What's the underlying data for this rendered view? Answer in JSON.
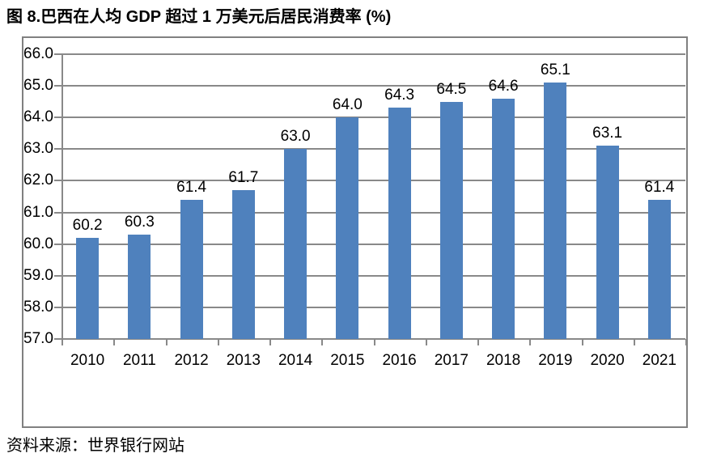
{
  "page": {
    "title": "图 8.巴西在人均 GDP 超过 1 万美元后居民消费率 (%)",
    "source": "资料来源：世界银行网站"
  },
  "colors": {
    "bar": "#4F81BD",
    "gridline": "#898989",
    "frame_border": "#808080",
    "text": "#000000"
  },
  "chart_data": {
    "type": "bar",
    "title": "图 8.巴西在人均 GDP 超过 1 万美元后居民消费率 (%)",
    "categories": [
      "2010",
      "2011",
      "2012",
      "2013",
      "2014",
      "2015",
      "2016",
      "2017",
      "2018",
      "2019",
      "2020",
      "2021"
    ],
    "values": [
      60.2,
      60.3,
      61.4,
      61.7,
      63.0,
      64.0,
      64.3,
      64.5,
      64.6,
      65.1,
      63.1,
      61.4
    ],
    "data_labels": [
      "60.2",
      "60.3",
      "61.4",
      "61.7",
      "63.0",
      "64.0",
      "64.3",
      "64.5",
      "64.6",
      "65.1",
      "63.1",
      "61.4"
    ],
    "xlabel": "",
    "ylabel": "",
    "ylim": [
      57.0,
      66.0
    ],
    "ytick_step": 1.0,
    "ytick_labels": [
      "57.0",
      "58.0",
      "59.0",
      "60.0",
      "61.0",
      "62.0",
      "63.0",
      "64.0",
      "65.0",
      "66.0"
    ],
    "grid": true,
    "legend": "none",
    "source": "资料来源：世界银行网站"
  }
}
